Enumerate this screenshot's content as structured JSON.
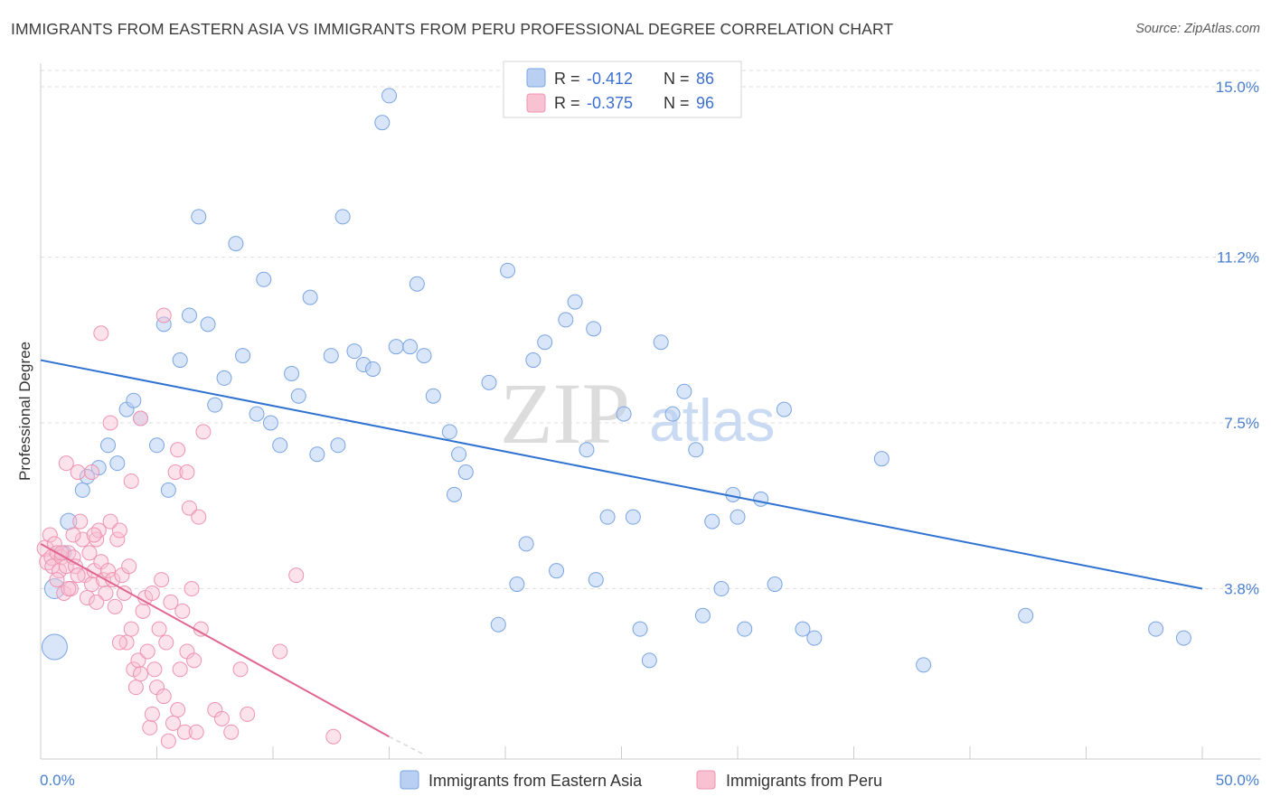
{
  "title": "IMMIGRANTS FROM EASTERN ASIA VS IMMIGRANTS FROM PERU PROFESSIONAL DEGREE CORRELATION CHART",
  "source": "Source: ZipAtlas.com",
  "watermark": {
    "zip": "ZIP",
    "atlas": "atlas"
  },
  "colors": {
    "blue_fill": "#b9d0f3",
    "blue_stroke": "#7aa5e2",
    "blue_line": "#2f72d1",
    "pink_fill": "#f8c2d3",
    "pink_stroke": "#ee93b0",
    "pink_line": "#e06690",
    "grid": "#dedede",
    "tick_text": "#4a7fcf"
  },
  "legend_top": {
    "rows": [
      {
        "r_label": "R = ",
        "r_value": "-0.412",
        "n_label": "N = ",
        "n_value": "86"
      },
      {
        "r_label": "R = ",
        "r_value": "-0.375",
        "n_label": "N = ",
        "n_value": "96"
      }
    ]
  },
  "legend_bottom": {
    "items": [
      "Immigrants from Eastern Asia",
      "Immigrants from Peru"
    ]
  },
  "chart_data": {
    "type": "scatter",
    "title": "IMMIGRANTS FROM EASTERN ASIA VS IMMIGRANTS FROM PERU PROFESSIONAL DEGREE CORRELATION CHART",
    "xlabel": "",
    "ylabel": "Professional Degree",
    "xlim": [
      0,
      50
    ],
    "ylim": [
      0,
      15.5
    ],
    "x_tick_labels": [
      "0.0%",
      "50.0%"
    ],
    "y_ticks": [
      3.8,
      7.5,
      11.2,
      15.0
    ],
    "y_tick_labels": [
      "3.8%",
      "7.5%",
      "11.2%",
      "15.0%"
    ],
    "grid": "horizontal dashed",
    "legend_position": "top-center",
    "series": [
      {
        "name": "Immigrants from Eastern Asia",
        "R": -0.412,
        "N": 86,
        "trend": {
          "x": [
            0,
            50
          ],
          "y": [
            8.9,
            3.8
          ]
        },
        "points": [
          [
            0.6,
            2.5,
            14
          ],
          [
            0.6,
            3.8,
            11
          ],
          [
            1.0,
            4.6,
            8
          ],
          [
            1.2,
            5.3,
            9
          ],
          [
            1.8,
            6.0,
            8
          ],
          [
            2.0,
            6.3,
            8
          ],
          [
            2.5,
            6.5,
            8
          ],
          [
            2.9,
            7.0,
            8
          ],
          [
            3.3,
            6.6,
            8
          ],
          [
            3.7,
            7.8,
            8
          ],
          [
            4.0,
            8.0,
            8
          ],
          [
            4.3,
            7.6,
            8
          ],
          [
            5.0,
            7.0,
            8
          ],
          [
            5.3,
            9.7,
            8
          ],
          [
            5.5,
            6.0,
            8
          ],
          [
            6.0,
            8.9,
            8
          ],
          [
            6.4,
            9.9,
            8
          ],
          [
            6.8,
            12.1,
            8
          ],
          [
            7.2,
            9.7,
            8
          ],
          [
            7.5,
            7.9,
            8
          ],
          [
            7.9,
            8.5,
            8
          ],
          [
            8.4,
            11.5,
            8
          ],
          [
            8.7,
            9.0,
            8
          ],
          [
            9.3,
            7.7,
            8
          ],
          [
            9.6,
            10.7,
            8
          ],
          [
            9.9,
            7.5,
            8
          ],
          [
            10.3,
            7.0,
            8
          ],
          [
            10.8,
            8.6,
            8
          ],
          [
            11.1,
            8.1,
            8
          ],
          [
            11.6,
            10.3,
            8
          ],
          [
            11.9,
            6.8,
            8
          ],
          [
            12.5,
            9.0,
            8
          ],
          [
            12.8,
            7.0,
            8
          ],
          [
            13.0,
            12.1,
            8
          ],
          [
            13.5,
            9.1,
            8
          ],
          [
            13.9,
            8.8,
            8
          ],
          [
            14.3,
            8.7,
            8
          ],
          [
            14.7,
            14.2,
            8
          ],
          [
            15.0,
            14.8,
            8
          ],
          [
            15.3,
            9.2,
            8
          ],
          [
            15.9,
            9.2,
            8
          ],
          [
            16.2,
            10.6,
            8
          ],
          [
            16.5,
            9.0,
            8
          ],
          [
            16.9,
            8.1,
            8
          ],
          [
            17.6,
            7.3,
            8
          ],
          [
            18.0,
            6.8,
            8
          ],
          [
            18.3,
            6.4,
            8
          ],
          [
            17.8,
            5.9,
            8
          ],
          [
            19.3,
            8.4,
            8
          ],
          [
            19.7,
            3.0,
            8
          ],
          [
            20.1,
            10.9,
            8
          ],
          [
            20.5,
            3.9,
            8
          ],
          [
            20.9,
            4.8,
            8
          ],
          [
            21.2,
            8.9,
            8
          ],
          [
            21.7,
            9.3,
            8
          ],
          [
            22.2,
            4.2,
            8
          ],
          [
            22.6,
            9.8,
            8
          ],
          [
            23.0,
            10.2,
            8
          ],
          [
            23.5,
            6.9,
            8
          ],
          [
            23.8,
            9.6,
            8
          ],
          [
            23.9,
            4.0,
            8
          ],
          [
            24.4,
            5.4,
            8
          ],
          [
            25.1,
            7.7,
            8
          ],
          [
            25.5,
            5.4,
            8
          ],
          [
            25.8,
            2.9,
            8
          ],
          [
            26.2,
            2.2,
            8
          ],
          [
            26.7,
            9.3,
            8
          ],
          [
            27.2,
            7.7,
            8
          ],
          [
            27.7,
            8.2,
            8
          ],
          [
            28.2,
            6.9,
            8
          ],
          [
            28.5,
            3.2,
            8
          ],
          [
            28.9,
            5.3,
            8
          ],
          [
            29.3,
            3.8,
            8
          ],
          [
            29.8,
            5.9,
            8
          ],
          [
            30.0,
            5.4,
            8
          ],
          [
            30.3,
            2.9,
            8
          ],
          [
            31.0,
            5.8,
            8
          ],
          [
            31.6,
            3.9,
            8
          ],
          [
            32.0,
            7.8,
            8
          ],
          [
            32.8,
            2.9,
            8
          ],
          [
            33.3,
            2.7,
            8
          ],
          [
            36.2,
            6.7,
            8
          ],
          [
            38.0,
            2.1,
            8
          ],
          [
            42.4,
            3.2,
            8
          ],
          [
            48.0,
            2.9,
            8
          ],
          [
            49.2,
            2.7,
            8
          ]
        ]
      },
      {
        "name": "Immigrants from Peru",
        "R": -0.375,
        "N": 96,
        "trend": {
          "x": [
            0,
            15
          ],
          "y": [
            4.8,
            0.5
          ]
        },
        "trend_dashed_extension": {
          "x": [
            15,
            16.5
          ],
          "y": [
            0.5,
            0.1
          ]
        },
        "points": [
          [
            0.2,
            4.7,
            9
          ],
          [
            0.3,
            4.4,
            9
          ],
          [
            0.4,
            5.0,
            8
          ],
          [
            0.5,
            4.5,
            9
          ],
          [
            0.5,
            4.3,
            8
          ],
          [
            0.6,
            4.8,
            8
          ],
          [
            0.7,
            4.6,
            8
          ],
          [
            0.8,
            4.2,
            8
          ],
          [
            0.9,
            4.5,
            8
          ],
          [
            1.0,
            3.7,
            8
          ],
          [
            1.1,
            4.3,
            8
          ],
          [
            1.2,
            4.6,
            8
          ],
          [
            1.3,
            3.8,
            8
          ],
          [
            1.4,
            4.5,
            8
          ],
          [
            1.5,
            4.3,
            8
          ],
          [
            1.6,
            6.4,
            8
          ],
          [
            1.7,
            5.3,
            8
          ],
          [
            1.8,
            4.9,
            8
          ],
          [
            1.9,
            4.1,
            8
          ],
          [
            2.0,
            3.6,
            8
          ],
          [
            2.1,
            4.6,
            8
          ],
          [
            2.2,
            3.9,
            8
          ],
          [
            2.3,
            4.2,
            8
          ],
          [
            2.4,
            4.9,
            8
          ],
          [
            2.5,
            5.1,
            8
          ],
          [
            2.6,
            4.4,
            8
          ],
          [
            2.7,
            4.0,
            8
          ],
          [
            2.8,
            3.7,
            8
          ],
          [
            2.9,
            4.2,
            8
          ],
          [
            3.0,
            5.3,
            8
          ],
          [
            3.1,
            4.0,
            8
          ],
          [
            3.2,
            3.4,
            8
          ],
          [
            3.3,
            4.9,
            8
          ],
          [
            3.4,
            5.1,
            8
          ],
          [
            3.5,
            4.1,
            8
          ],
          [
            3.6,
            3.7,
            8
          ],
          [
            3.7,
            2.6,
            8
          ],
          [
            3.8,
            4.3,
            8
          ],
          [
            3.9,
            2.9,
            8
          ],
          [
            4.0,
            2.0,
            8
          ],
          [
            4.1,
            1.6,
            8
          ],
          [
            4.2,
            2.2,
            8
          ],
          [
            4.3,
            1.9,
            8
          ],
          [
            4.4,
            3.3,
            8
          ],
          [
            4.5,
            3.6,
            8
          ],
          [
            4.6,
            2.4,
            8
          ],
          [
            4.7,
            0.7,
            8
          ],
          [
            4.8,
            1.0,
            8
          ],
          [
            4.9,
            2.0,
            8
          ],
          [
            5.0,
            1.6,
            8
          ],
          [
            5.1,
            2.9,
            8
          ],
          [
            5.2,
            4.0,
            8
          ],
          [
            5.3,
            1.4,
            8
          ],
          [
            5.4,
            2.6,
            8
          ],
          [
            5.5,
            0.4,
            8
          ],
          [
            5.6,
            3.5,
            8
          ],
          [
            5.7,
            0.8,
            8
          ],
          [
            5.8,
            6.4,
            8
          ],
          [
            5.9,
            1.1,
            8
          ],
          [
            6.0,
            2.0,
            8
          ],
          [
            6.1,
            3.3,
            8
          ],
          [
            6.2,
            0.6,
            8
          ],
          [
            6.3,
            2.4,
            8
          ],
          [
            6.4,
            5.6,
            8
          ],
          [
            6.5,
            3.8,
            8
          ],
          [
            6.6,
            2.2,
            8
          ],
          [
            6.7,
            0.6,
            8
          ],
          [
            6.8,
            5.4,
            8
          ],
          [
            6.9,
            2.9,
            8
          ],
          [
            7.0,
            7.3,
            8
          ],
          [
            7.5,
            1.1,
            8
          ],
          [
            7.8,
            0.9,
            8
          ],
          [
            8.2,
            0.6,
            8
          ],
          [
            8.6,
            2.0,
            8
          ],
          [
            8.9,
            1.0,
            8
          ],
          [
            10.3,
            2.4,
            8
          ],
          [
            11.0,
            4.1,
            8
          ],
          [
            12.6,
            0.5,
            8
          ],
          [
            6.3,
            6.4,
            8
          ],
          [
            5.9,
            6.9,
            8
          ],
          [
            4.3,
            7.6,
            8
          ],
          [
            3.9,
            6.2,
            8
          ],
          [
            3.0,
            7.5,
            8
          ],
          [
            2.2,
            6.4,
            8
          ],
          [
            2.3,
            5.0,
            8
          ],
          [
            1.4,
            5.0,
            8
          ],
          [
            2.6,
            9.5,
            8
          ],
          [
            5.3,
            9.9,
            8
          ],
          [
            1.1,
            6.6,
            8
          ],
          [
            0.7,
            4.0,
            8
          ],
          [
            0.9,
            4.6,
            8
          ],
          [
            1.2,
            3.8,
            8
          ],
          [
            1.6,
            4.1,
            8
          ],
          [
            2.4,
            3.5,
            8
          ],
          [
            3.4,
            2.6,
            8
          ],
          [
            4.8,
            3.7,
            8
          ]
        ]
      }
    ]
  }
}
